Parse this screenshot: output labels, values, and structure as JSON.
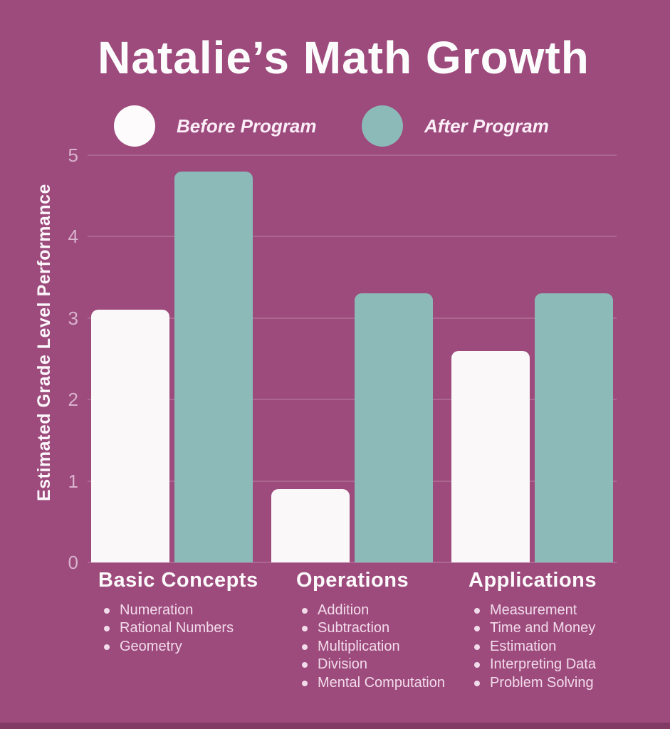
{
  "title": "Natalie’s Math Growth",
  "legend": {
    "items": [
      {
        "label": "Before Program",
        "color": "#fdfbfc"
      },
      {
        "label": "After Program",
        "color": "#8bbab8"
      }
    ]
  },
  "y_axis": {
    "label": "Estimated Grade Level Performance"
  },
  "chart_data": {
    "type": "bar",
    "title": "Natalie’s Math Growth",
    "xlabel": "",
    "ylabel": "Estimated Grade Level Performance",
    "categories": [
      "Basic Concepts",
      "Operations",
      "Applications"
    ],
    "series": [
      {
        "name": "Before Program",
        "color": "#fbf8fa",
        "values": [
          3.1,
          0.9,
          2.6
        ]
      },
      {
        "name": "After Program",
        "color": "#8bbab8",
        "values": [
          4.8,
          3.3,
          3.3
        ]
      }
    ],
    "ylim": [
      0,
      5
    ],
    "yticks": [
      0,
      1,
      2,
      3,
      4,
      5
    ],
    "grid": true,
    "legend_position": "top"
  },
  "category_details": [
    {
      "label": "Basic Concepts",
      "items": [
        "Numeration",
        "Rational Numbers",
        "Geometry"
      ]
    },
    {
      "label": "Operations",
      "items": [
        "Addition",
        "Subtraction",
        "Multiplication",
        "Division",
        "Mental Computation"
      ]
    },
    {
      "label": "Applications",
      "items": [
        "Measurement",
        "Time and Money",
        "Estimation",
        "Interpreting Data",
        "Problem Solving"
      ]
    }
  ],
  "colors": {
    "background": "#9d4a7c",
    "before_bar": "#fbf8fa",
    "after_bar": "#8bbab8",
    "gridline": "rgba(255,255,255,0.16)",
    "tick_text": "#d9b3cd",
    "heading_text": "#fcfafb",
    "bullet_text": "#f2dceb"
  }
}
